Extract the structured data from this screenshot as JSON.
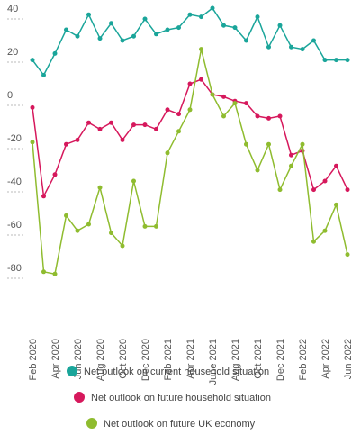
{
  "chart_data": {
    "type": "line",
    "categories": [
      "Feb 2020",
      null,
      "Apr 2020",
      null,
      "Jun 2020",
      null,
      "Aug 2020",
      null,
      "Oct 2020",
      null,
      "Dec 2020",
      null,
      "Feb 2021",
      null,
      "Apr 2021",
      null,
      "June 2021",
      null,
      "Aug 2021",
      null,
      "Oct 2021",
      null,
      "Dec 2021",
      null,
      "Feb 2022",
      null,
      "Apr 2022",
      null,
      "Jun 2022"
    ],
    "series": [
      {
        "name": "Net outlook on current household situation",
        "color": "#1aa59a",
        "values": [
          21,
          14,
          24,
          35,
          32,
          42,
          31,
          38,
          30,
          32,
          40,
          33,
          35,
          36,
          42,
          41,
          45,
          37,
          36,
          30,
          41,
          27,
          37,
          27,
          26,
          30,
          21,
          21,
          21
        ]
      },
      {
        "name": "Net outlook on future household situation",
        "color": "#d6185c",
        "values": [
          -1,
          -42,
          -32,
          -18,
          -16,
          -8,
          -11,
          -8,
          -16,
          -9,
          -9,
          -11,
          -2,
          -4,
          10,
          12,
          5,
          4,
          2,
          1,
          -5,
          -6,
          -5,
          -23,
          -21,
          -39,
          -35,
          -28,
          -39
        ]
      },
      {
        "name": "Net outlook on future UK economy",
        "color": "#8fbc2f",
        "values": [
          -17,
          -77,
          -78,
          -51,
          -58,
          -55,
          -38,
          -59,
          -65,
          -35,
          -56,
          -56,
          -22,
          -12,
          -2,
          26,
          5,
          -5,
          1,
          -18,
          -30,
          -18,
          -39,
          -28,
          -18,
          -63,
          -58,
          -46,
          -69
        ]
      }
    ],
    "ylim": [
      -85,
      45
    ],
    "yticks": [
      40,
      20,
      0,
      -20,
      -40,
      -60,
      -80
    ],
    "grid": true
  }
}
